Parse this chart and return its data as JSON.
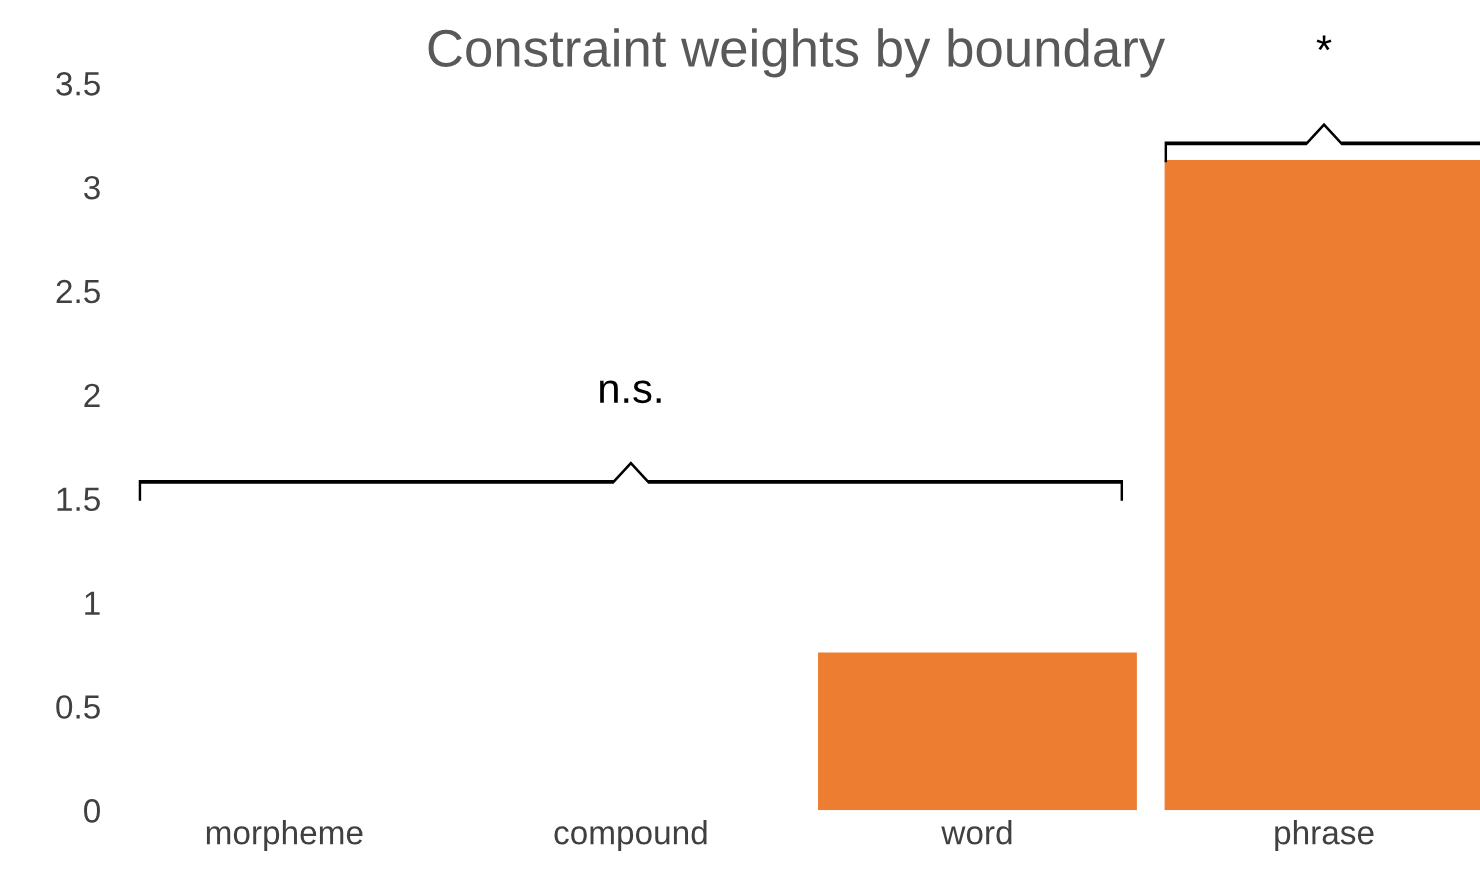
{
  "chart_data": {
    "type": "bar",
    "title": "Constraint weights by boundary",
    "categories": [
      "morpheme",
      "compound",
      "word",
      "phrase"
    ],
    "values": [
      0,
      0,
      0.76,
      3.13
    ],
    "color": "#ed7d31",
    "ylim": [
      0,
      3.5
    ],
    "yticks": [
      0,
      0.5,
      1,
      1.5,
      2,
      2.5,
      3,
      3.5
    ],
    "grid": false,
    "annotations": [
      "n.s.",
      "*"
    ]
  }
}
